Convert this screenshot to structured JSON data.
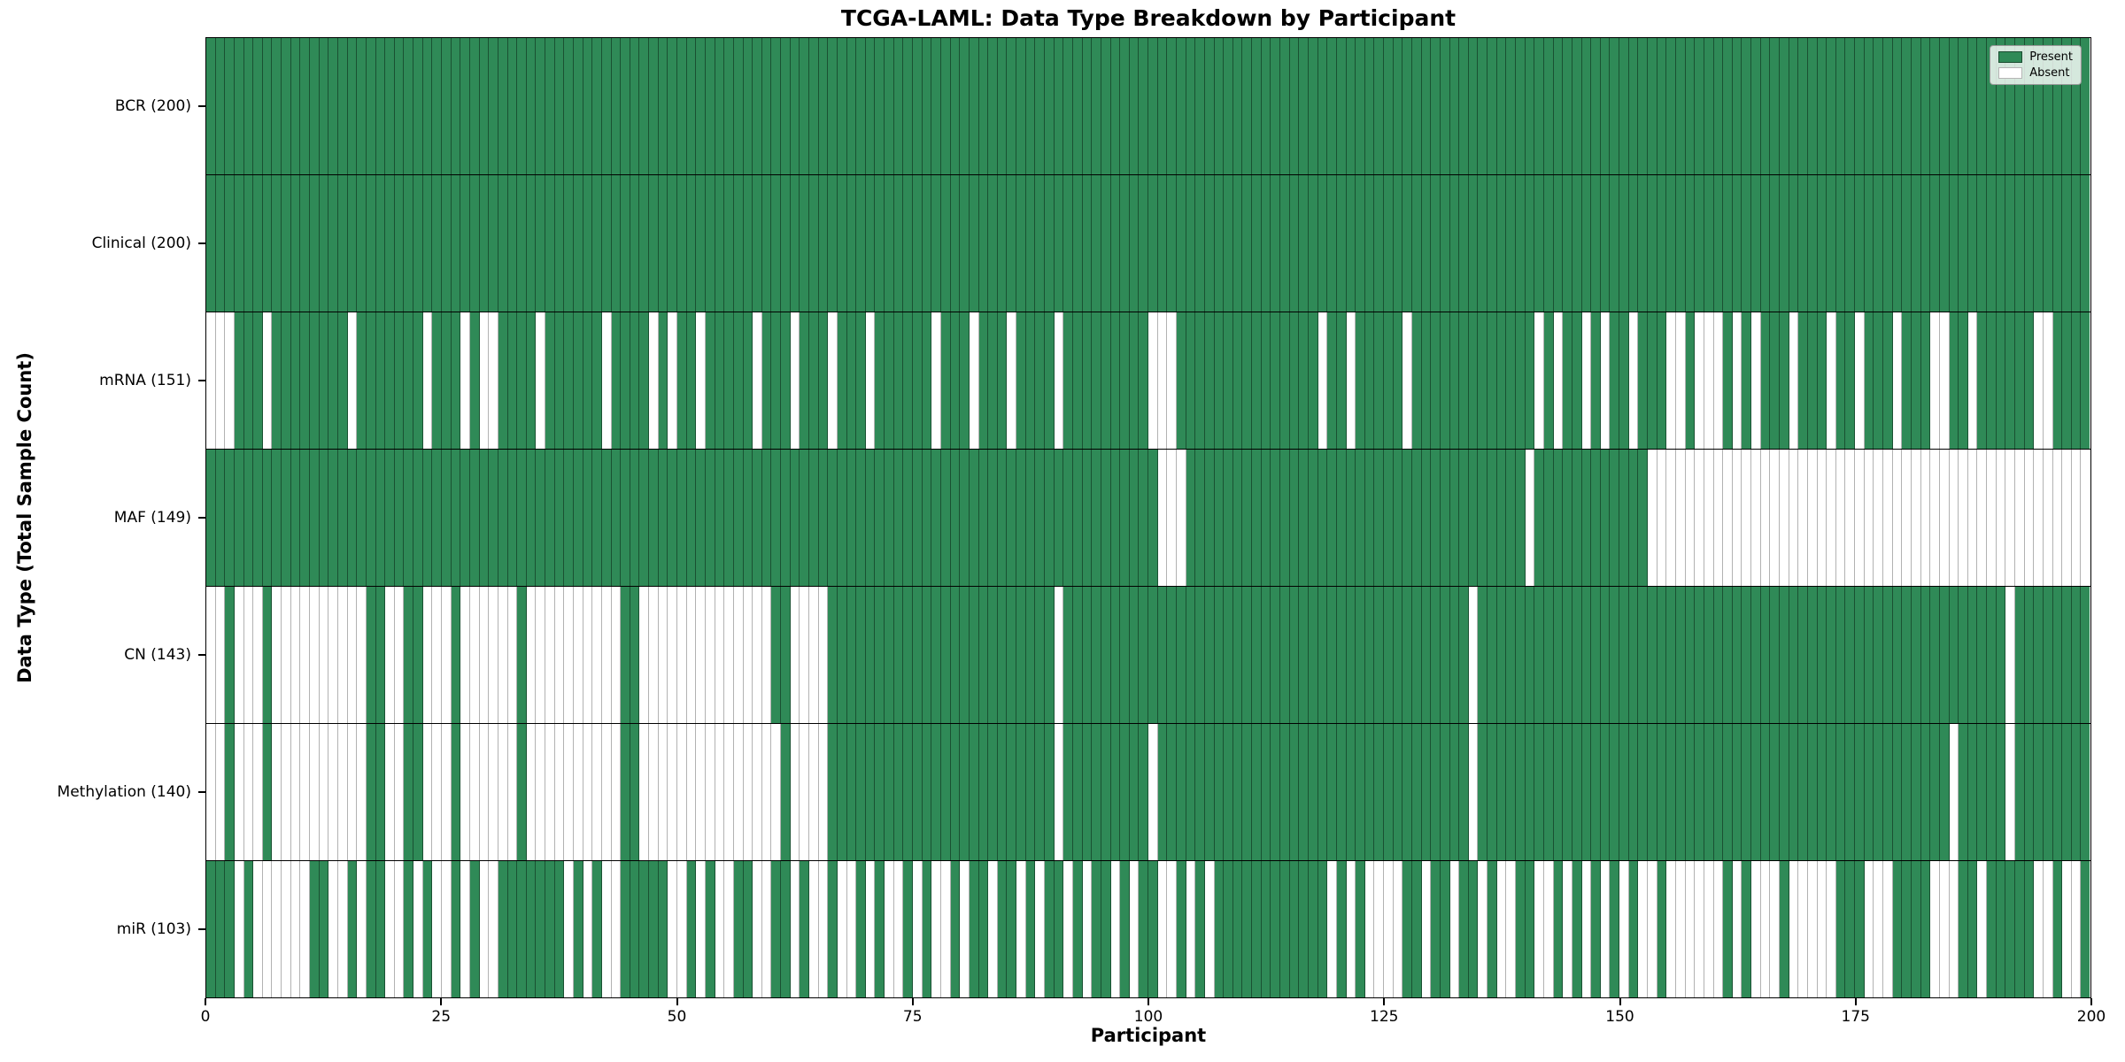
{
  "colors": {
    "present": "#2f8a57",
    "absent": "#ffffff",
    "row_divider": "#000000",
    "axis": "#000000"
  },
  "chart_data": {
    "type": "heatmap",
    "title": "TCGA-LAML: Data Type Breakdown by Participant",
    "xlabel": "Participant",
    "ylabel": "Data Type (Total Sample Count)",
    "legend": {
      "present": "Present",
      "absent": "Absent"
    },
    "legend_position": "upper right",
    "n_participants": 200,
    "x_range": [
      0,
      200
    ],
    "x_ticks": [
      0,
      25,
      50,
      75,
      100,
      125,
      150,
      175,
      200
    ],
    "cell_values": "1 = present (green), 0 = absent (white); rows list absent participant indices",
    "rows": [
      {
        "key": "bcr",
        "label": "BCR (200)",
        "present_count": 200,
        "absent": []
      },
      {
        "key": "clinical",
        "label": "Clinical (200)",
        "present_count": 200,
        "absent": []
      },
      {
        "key": "mrna",
        "label": "mRNA (151)",
        "present_count": 151,
        "absent": [
          0,
          1,
          2,
          6,
          15,
          23,
          27,
          29,
          30,
          35,
          42,
          47,
          49,
          52,
          58,
          62,
          66,
          70,
          77,
          81,
          85,
          90,
          100,
          101,
          102,
          118,
          121,
          127,
          141,
          143,
          146,
          148,
          151,
          155,
          156,
          158,
          159,
          160,
          162,
          164,
          168,
          172,
          175,
          179,
          183,
          184,
          187,
          194,
          195
        ]
      },
      {
        "key": "maf",
        "label": "MAF (149)",
        "present_count": 149,
        "absent": [
          101,
          102,
          103,
          140,
          153,
          154,
          155,
          156,
          157,
          158,
          159,
          160,
          161,
          162,
          163,
          164,
          165,
          166,
          167,
          168,
          169,
          170,
          171,
          172,
          173,
          174,
          175,
          176,
          177,
          178,
          179,
          180,
          181,
          182,
          183,
          184,
          185,
          186,
          187,
          188,
          189,
          190,
          191,
          192,
          193,
          194,
          195,
          196,
          197,
          198,
          199
        ]
      },
      {
        "key": "cn",
        "label": "CN (143)",
        "present_count": 143,
        "absent": [
          0,
          1,
          3,
          4,
          5,
          7,
          8,
          9,
          10,
          11,
          12,
          13,
          14,
          15,
          16,
          19,
          20,
          23,
          24,
          25,
          27,
          28,
          29,
          30,
          31,
          32,
          34,
          35,
          36,
          37,
          38,
          39,
          40,
          41,
          42,
          43,
          46,
          47,
          48,
          49,
          50,
          51,
          52,
          53,
          54,
          55,
          56,
          57,
          58,
          59,
          62,
          63,
          64,
          65,
          90,
          134,
          191
        ]
      },
      {
        "key": "methylation",
        "label": "Methylation (140)",
        "present_count": 140,
        "absent": [
          0,
          1,
          3,
          4,
          5,
          7,
          8,
          9,
          10,
          11,
          12,
          13,
          14,
          15,
          16,
          19,
          20,
          23,
          24,
          25,
          27,
          28,
          29,
          30,
          31,
          32,
          34,
          35,
          36,
          37,
          38,
          39,
          40,
          41,
          42,
          43,
          46,
          47,
          48,
          49,
          50,
          51,
          52,
          53,
          54,
          55,
          56,
          57,
          58,
          59,
          60,
          62,
          63,
          64,
          65,
          90,
          100,
          134,
          185,
          191
        ]
      },
      {
        "key": "mir",
        "label": "miR (103)",
        "present_count": 103,
        "absent": [
          3,
          5,
          6,
          7,
          8,
          9,
          10,
          13,
          14,
          16,
          19,
          20,
          22,
          24,
          25,
          27,
          29,
          30,
          38,
          40,
          42,
          43,
          49,
          50,
          52,
          54,
          55,
          58,
          59,
          62,
          64,
          65,
          67,
          68,
          70,
          72,
          73,
          75,
          77,
          78,
          80,
          83,
          86,
          88,
          91,
          93,
          96,
          98,
          101,
          102,
          104,
          106,
          119,
          121,
          123,
          124,
          125,
          126,
          129,
          132,
          135,
          137,
          138,
          141,
          142,
          144,
          146,
          148,
          150,
          152,
          153,
          155,
          156,
          157,
          158,
          159,
          160,
          162,
          164,
          165,
          166,
          168,
          169,
          170,
          171,
          172,
          176,
          177,
          178,
          183,
          184,
          185,
          188,
          194,
          195,
          197,
          198
        ]
      }
    ]
  }
}
